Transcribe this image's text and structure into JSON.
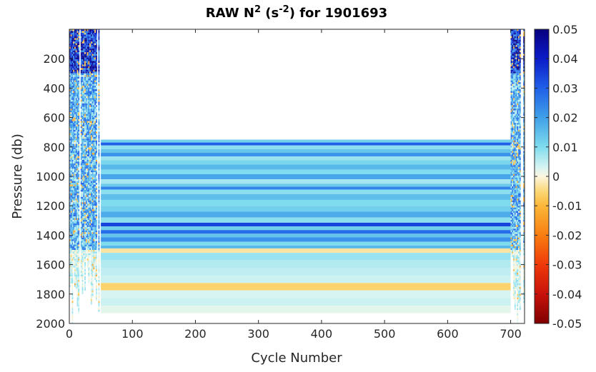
{
  "chart_data": {
    "type": "heatmap",
    "title": {
      "prefix": "RAW N",
      "prefix_sup": "2",
      "units_open": " (s",
      "units_sup": "-2",
      "units_close": ")",
      "suffix": " for 1901693"
    },
    "xlabel": "Cycle Number",
    "ylabel": "Pressure (db)",
    "xlim": [
      0,
      722
    ],
    "ylim": [
      0,
      2000
    ],
    "y_reversed": true,
    "x_ticks": [
      0,
      100,
      200,
      300,
      400,
      500,
      600,
      700
    ],
    "x_tick_labels": [
      "0",
      "100",
      "200",
      "300",
      "400",
      "500",
      "600",
      "700"
    ],
    "y_ticks": [
      200,
      400,
      600,
      800,
      1000,
      1200,
      1400,
      1600,
      1800,
      2000
    ],
    "y_tick_labels": [
      "200",
      "400",
      "600",
      "800",
      "1000",
      "1200",
      "1400",
      "1600",
      "1800",
      "2000"
    ],
    "colorbar": {
      "clim": [
        -0.05,
        0.05
      ],
      "ticks": [
        0.05,
        0.04,
        0.03,
        0.02,
        0.01,
        0,
        -0.01,
        -0.02,
        -0.03,
        -0.04,
        -0.05
      ],
      "tick_labels": [
        "0.05",
        "0.04",
        "0.03",
        "0.02",
        "0.01",
        "0",
        "-0.01",
        "-0.02",
        "-0.03",
        "-0.04",
        "-0.05"
      ],
      "colormap_stops": [
        {
          "value": 0.05,
          "color": "#08007f"
        },
        {
          "value": 0.04,
          "color": "#0b1cc8"
        },
        {
          "value": 0.03,
          "color": "#2060e8"
        },
        {
          "value": 0.02,
          "color": "#40a0e8"
        },
        {
          "value": 0.01,
          "color": "#7fdcee"
        },
        {
          "value": 0.003,
          "color": "#d8f4f2"
        },
        {
          "value": 0.0,
          "color": "#fbf6e0"
        },
        {
          "value": -0.005,
          "color": "#fbd877"
        },
        {
          "value": -0.01,
          "color": "#fbb83a"
        },
        {
          "value": -0.02,
          "color": "#f97d10"
        },
        {
          "value": -0.03,
          "color": "#ee3a0a"
        },
        {
          "value": -0.04,
          "color": "#c8120b"
        },
        {
          "value": -0.05,
          "color": "#7f0000"
        }
      ]
    },
    "regions": [
      {
        "name": "early-cycles-full-profiles",
        "cycle_range": [
          0,
          48
        ],
        "pressure_range": [
          0,
          2000
        ],
        "pattern": "noisy, dense blue near surface"
      },
      {
        "name": "mid-cycles-deep-only",
        "cycle_range": [
          50,
          700
        ],
        "pressure_range": [
          750,
          1930
        ],
        "pattern": "horizontal bands, constant with cycle"
      },
      {
        "name": "late-cycles-full-profiles",
        "cycle_range": [
          700,
          722
        ],
        "pressure_range": [
          0,
          2000
        ],
        "pattern": "noisy, dense blue near surface"
      }
    ],
    "band_profile": [
      {
        "pressure": 760,
        "value": 0.012
      },
      {
        "pressure": 780,
        "value": 0.03
      },
      {
        "pressure": 800,
        "value": 0.009
      },
      {
        "pressure": 830,
        "value": 0.014
      },
      {
        "pressure": 850,
        "value": 0.022
      },
      {
        "pressure": 880,
        "value": 0.008
      },
      {
        "pressure": 900,
        "value": 0.011
      },
      {
        "pressure": 940,
        "value": 0.016
      },
      {
        "pressure": 970,
        "value": 0.01
      },
      {
        "pressure": 1000,
        "value": 0.019
      },
      {
        "pressure": 1040,
        "value": 0.007
      },
      {
        "pressure": 1060,
        "value": 0.013
      },
      {
        "pressure": 1080,
        "value": 0.024
      },
      {
        "pressure": 1100,
        "value": 0.009
      },
      {
        "pressure": 1140,
        "value": 0.015
      },
      {
        "pressure": 1180,
        "value": 0.01
      },
      {
        "pressure": 1220,
        "value": 0.012
      },
      {
        "pressure": 1260,
        "value": 0.018
      },
      {
        "pressure": 1300,
        "value": 0.009
      },
      {
        "pressure": 1330,
        "value": 0.034
      },
      {
        "pressure": 1350,
        "value": 0.012
      },
      {
        "pressure": 1380,
        "value": 0.028
      },
      {
        "pressure": 1400,
        "value": 0.014
      },
      {
        "pressure": 1430,
        "value": 0.022
      },
      {
        "pressure": 1460,
        "value": 0.01
      },
      {
        "pressure": 1480,
        "value": 0.016
      },
      {
        "pressure": 1500,
        "value": -0.003
      },
      {
        "pressure": 1540,
        "value": 0.008
      },
      {
        "pressure": 1600,
        "value": 0.006
      },
      {
        "pressure": 1650,
        "value": 0.005
      },
      {
        "pressure": 1700,
        "value": 0.004
      },
      {
        "pressure": 1750,
        "value": -0.006
      },
      {
        "pressure": 1800,
        "value": 0.003
      },
      {
        "pressure": 1860,
        "value": 0.004
      },
      {
        "pressure": 1900,
        "value": 0.002
      }
    ],
    "grid": false,
    "legend": "colorbar-right"
  }
}
